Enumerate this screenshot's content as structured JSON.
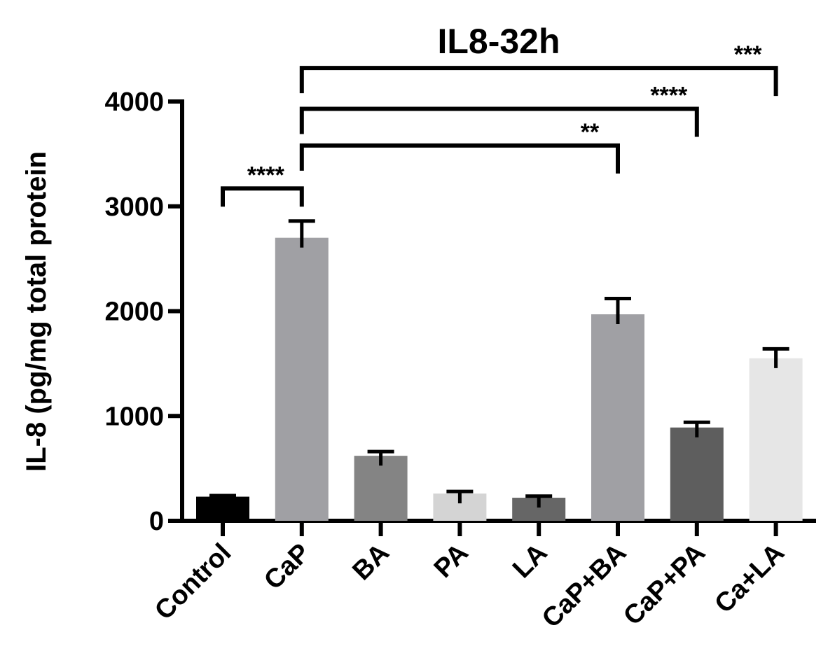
{
  "chart_data": {
    "type": "bar",
    "title": "IL8-32h",
    "xlabel": "",
    "ylabel": "IL-8 (pg/mg total protein",
    "ylim": [
      0,
      4000
    ],
    "yticks": [
      0,
      1000,
      2000,
      3000,
      4000
    ],
    "grid": false,
    "legend": "none",
    "categories": [
      "Control",
      "CaP",
      "BA",
      "PA",
      "LA",
      "CaP+BA",
      "CaP+PA",
      "Ca+LA"
    ],
    "values": [
      230,
      2700,
      620,
      260,
      220,
      1970,
      890,
      1550
    ],
    "errors": [
      10,
      160,
      40,
      20,
      15,
      150,
      50,
      90
    ],
    "colors": [
      "#000000",
      "#a0a0a4",
      "#848484",
      "#d4d4d4",
      "#666666",
      "#a0a0a4",
      "#5e5e5e",
      "#e6e6e6"
    ],
    "significance": [
      {
        "from": "Control",
        "to": "CaP",
        "label": "****",
        "y": 3170
      },
      {
        "from": "CaP",
        "to": "CaP+BA",
        "label": "**",
        "y": 3580
      },
      {
        "from": "CaP",
        "to": "CaP+PA",
        "label": "****",
        "y": 3930
      },
      {
        "from": "CaP",
        "to": "Ca+LA",
        "label": "***",
        "y": 4320
      }
    ]
  }
}
